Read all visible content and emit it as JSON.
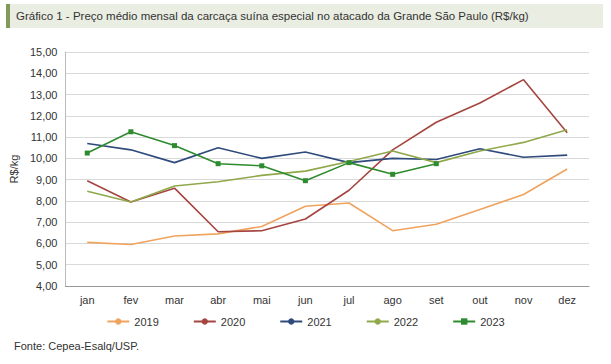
{
  "chart_data": {
    "type": "line",
    "title": "Gráfico 1 - Preço médio mensal da carcaça suína especial no atacado da Grande São Paulo (R$/kg)",
    "y_label": "R$/kg",
    "source": "Fonte: Cepea-Esalq/USP.",
    "categories": [
      "jan",
      "fev",
      "mar",
      "abr",
      "mai",
      "jun",
      "jul",
      "ago",
      "set",
      "out",
      "nov",
      "dez"
    ],
    "series": [
      {
        "name": "2019",
        "color": "#f0a35e",
        "marker": "none",
        "values": [
          6.05,
          5.95,
          6.35,
          6.45,
          6.8,
          7.75,
          7.9,
          6.6,
          6.9,
          7.6,
          8.3,
          9.5
        ]
      },
      {
        "name": "2020",
        "color": "#a5453f",
        "marker": "none",
        "values": [
          8.95,
          7.95,
          8.6,
          6.55,
          6.6,
          7.15,
          8.5,
          10.4,
          11.7,
          12.6,
          13.7,
          11.2
        ]
      },
      {
        "name": "2021",
        "color": "#2f4b7c",
        "marker": "none",
        "values": [
          10.7,
          10.4,
          9.8,
          10.5,
          10.0,
          10.3,
          9.8,
          10.0,
          9.95,
          10.45,
          10.05,
          10.15
        ]
      },
      {
        "name": "2022",
        "color": "#8fa84a",
        "marker": "none",
        "values": [
          8.45,
          7.95,
          8.7,
          8.9,
          9.2,
          9.4,
          9.85,
          10.35,
          9.8,
          10.35,
          10.75,
          11.35
        ]
      },
      {
        "name": "2023",
        "color": "#2e8b2e",
        "marker": "square",
        "values": [
          10.25,
          11.25,
          10.6,
          9.75,
          9.65,
          8.95,
          9.8,
          9.25,
          9.75,
          null,
          null,
          null
        ]
      }
    ],
    "ylim": [
      4,
      15
    ],
    "yticks": [
      {
        "value": 4,
        "label": "4,00"
      },
      {
        "value": 5,
        "label": "5,00"
      },
      {
        "value": 6,
        "label": "6,00"
      },
      {
        "value": 7,
        "label": "7,00"
      },
      {
        "value": 8,
        "label": "8,00"
      },
      {
        "value": 9,
        "label": "9,00"
      },
      {
        "value": 10,
        "label": "10,00"
      },
      {
        "value": 11,
        "label": "11,00"
      },
      {
        "value": 12,
        "label": "12,00"
      },
      {
        "value": 13,
        "label": "13,00"
      },
      {
        "value": 14,
        "label": "14,00"
      },
      {
        "value": 15,
        "label": "15,00"
      }
    ],
    "grid": true,
    "legend": "bottom"
  }
}
